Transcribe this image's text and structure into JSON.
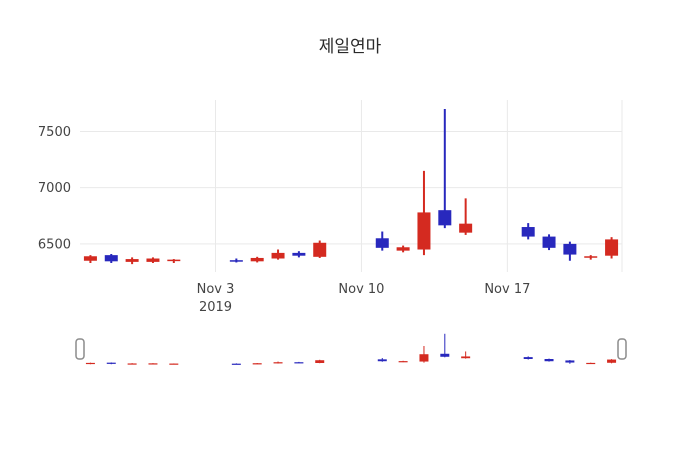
{
  "chart_data": {
    "type": "candlestick",
    "title": "제일연마",
    "xlabel": "",
    "ylabel": "",
    "legend": "none",
    "grid": "on",
    "colors": {
      "increasing": "#d42a20",
      "decreasing": "#2828bd",
      "grid": "#e9e9e9",
      "axis_text": "#444444",
      "background": "#ffffff",
      "handle_fill": "#ffffff",
      "handle_stroke": "#8c8c8c"
    },
    "yaxis": {
      "ticks": [
        6500,
        7000,
        7500
      ],
      "range": [
        6250,
        7780
      ]
    },
    "xaxis": {
      "range": [
        "2019-10-27T12:00:00",
        "2019-11-22T12:00:00"
      ],
      "tick_labels": [
        {
          "date": "2019-11-03",
          "lines": [
            "Nov 3",
            "2019"
          ]
        },
        {
          "date": "2019-11-10",
          "lines": [
            "Nov 10"
          ]
        },
        {
          "date": "2019-11-17",
          "lines": [
            "Nov 17"
          ]
        }
      ]
    },
    "rangeslider": {
      "visible": true
    },
    "ohlc": [
      {
        "date": "2019-10-28",
        "open": 6350,
        "high": 6400,
        "low": 6330,
        "close": 6390
      },
      {
        "date": "2019-10-29",
        "open": 6400,
        "high": 6410,
        "low": 6330,
        "close": 6345
      },
      {
        "date": "2019-10-30",
        "open": 6340,
        "high": 6380,
        "low": 6320,
        "close": 6365
      },
      {
        "date": "2019-10-31",
        "open": 6340,
        "high": 6380,
        "low": 6330,
        "close": 6370
      },
      {
        "date": "2019-11-01",
        "open": 6350,
        "high": 6365,
        "low": 6330,
        "close": 6360
      },
      {
        "date": "2019-11-04",
        "open": 6355,
        "high": 6370,
        "low": 6335,
        "close": 6345
      },
      {
        "date": "2019-11-05",
        "open": 6345,
        "high": 6385,
        "low": 6335,
        "close": 6375
      },
      {
        "date": "2019-11-06",
        "open": 6370,
        "high": 6450,
        "low": 6360,
        "close": 6420
      },
      {
        "date": "2019-11-07",
        "open": 6420,
        "high": 6435,
        "low": 6380,
        "close": 6395
      },
      {
        "date": "2019-11-08",
        "open": 6385,
        "high": 6530,
        "low": 6375,
        "close": 6510
      },
      {
        "date": "2019-11-11",
        "open": 6550,
        "high": 6610,
        "low": 6440,
        "close": 6465
      },
      {
        "date": "2019-11-12",
        "open": 6440,
        "high": 6485,
        "low": 6425,
        "close": 6470
      },
      {
        "date": "2019-11-13",
        "open": 6450,
        "high": 7150,
        "low": 6400,
        "close": 6780
      },
      {
        "date": "2019-11-14",
        "open": 6800,
        "high": 7700,
        "low": 6640,
        "close": 6665
      },
      {
        "date": "2019-11-15",
        "open": 6600,
        "high": 6905,
        "low": 6580,
        "close": 6680
      },
      {
        "date": "2019-11-18",
        "open": 6650,
        "high": 6685,
        "low": 6540,
        "close": 6565
      },
      {
        "date": "2019-11-19",
        "open": 6565,
        "high": 6585,
        "low": 6445,
        "close": 6465
      },
      {
        "date": "2019-11-20",
        "open": 6500,
        "high": 6520,
        "low": 6350,
        "close": 6405
      },
      {
        "date": "2019-11-21",
        "open": 6380,
        "high": 6400,
        "low": 6360,
        "close": 6390
      },
      {
        "date": "2019-11-22",
        "open": 6395,
        "high": 6560,
        "low": 6370,
        "close": 6540
      }
    ]
  }
}
